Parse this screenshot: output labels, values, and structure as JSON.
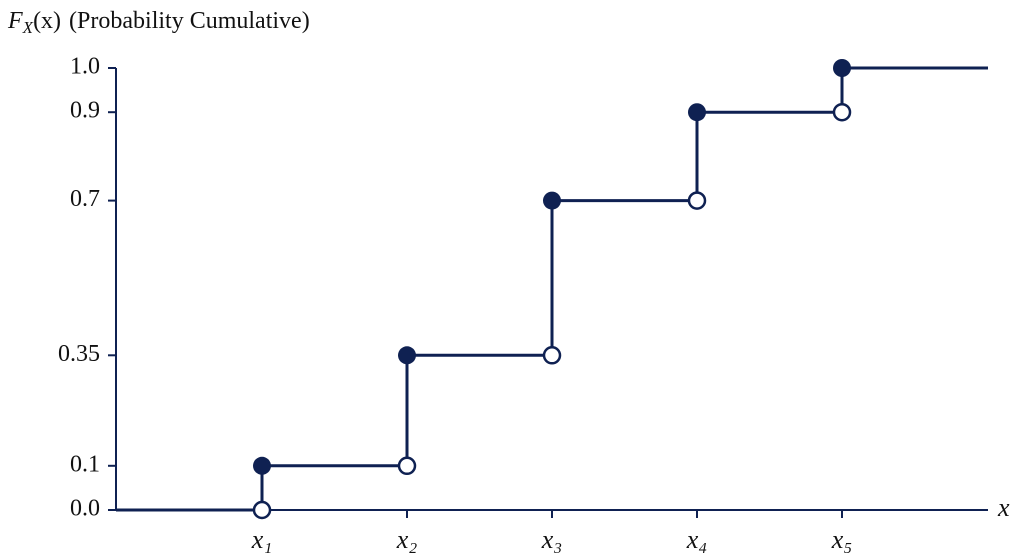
{
  "chart_data": {
    "type": "step",
    "ylabel": {
      "symbol": "F",
      "subscript": "X",
      "argument": "(x)",
      "text": "(Probability Cumulative)"
    },
    "xlabel": "x",
    "categories": [
      "x₁",
      "x₂",
      "x₃",
      "x₄",
      "x₅"
    ],
    "start_value": 0,
    "values": [
      0.1,
      0.35,
      0.7,
      0.9,
      1.0
    ],
    "color": "#0f2152",
    "ylim": [
      0,
      1
    ],
    "yticks": [
      {
        "value": 0,
        "label": "0.0"
      },
      0.1,
      0.35,
      0.7,
      0.9,
      {
        "value": 1,
        "label": "1.0"
      }
    ]
  }
}
